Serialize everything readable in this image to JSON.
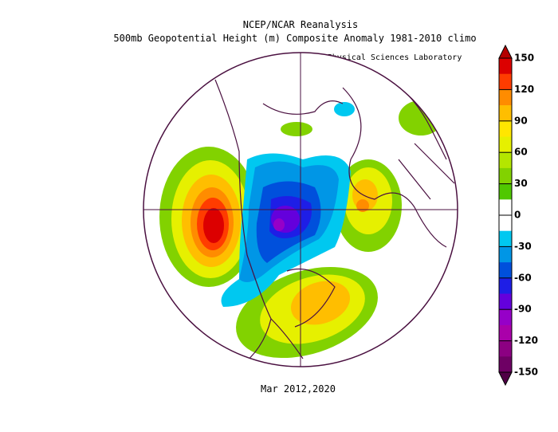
{
  "header": {
    "title": "NCEP/NCAR Reanalysis",
    "subtitle": "500mb Geopotential Height (m) Composite Anomaly 1981-2010 climo",
    "credit": "NOAA Physical Sciences Laboratory"
  },
  "map": {
    "caption": "Mar 2012,2020"
  },
  "colorbar": {
    "ticks": [
      150,
      120,
      90,
      60,
      30,
      0,
      -30,
      -60,
      -90,
      -120,
      -150
    ],
    "over_color": "#b40000",
    "under_color": "#500046",
    "band_colors": [
      "#dc0000",
      "#ff3c00",
      "#ff8c00",
      "#ffbe00",
      "#ffe600",
      "#e6f000",
      "#b4e600",
      "#82d200",
      "#50c800",
      "#ffffff",
      "#ffffff",
      "#00c8f0",
      "#0096e6",
      "#0050dc",
      "#1e1ee6",
      "#6400dc",
      "#9600c8",
      "#aa00aa",
      "#8c0082",
      "#6e0064"
    ]
  }
}
